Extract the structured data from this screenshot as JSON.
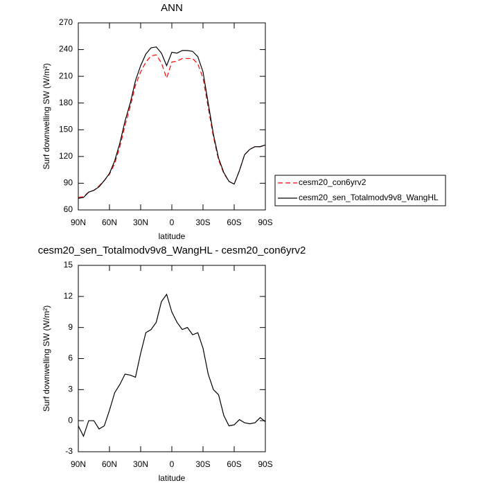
{
  "chart_data": [
    {
      "type": "line",
      "title": "ANN",
      "xlabel": "latitude",
      "ylabel": "Surf downwelling SW (W/m²)",
      "x": [
        90,
        85,
        80,
        75,
        70,
        65,
        60,
        55,
        50,
        45,
        40,
        35,
        30,
        25,
        20,
        15,
        10,
        5,
        0,
        -5,
        -10,
        -15,
        -20,
        -25,
        -30,
        -35,
        -40,
        -45,
        -50,
        -55,
        -60,
        -65,
        -70,
        -75,
        -80,
        -85,
        -90
      ],
      "xlim": [
        90,
        -90
      ],
      "xticks": [
        {
          "value": 90,
          "label": "90N"
        },
        {
          "value": 60,
          "label": "60N"
        },
        {
          "value": 30,
          "label": "30N"
        },
        0,
        {
          "value": -30,
          "label": "30S"
        },
        {
          "value": -60,
          "label": "60S"
        },
        {
          "value": -90,
          "label": "90S"
        }
      ],
      "ylim": [
        60,
        270
      ],
      "yticks": [
        60,
        90,
        120,
        150,
        180,
        210,
        240,
        270
      ],
      "legend": "right",
      "series": [
        {
          "name": "cesm20_con6yrv2",
          "color": "#ff0000",
          "line_style": "dashed",
          "values": [
            74,
            75,
            80,
            82,
            87,
            93,
            100,
            112,
            131,
            155,
            176,
            200,
            215,
            226,
            233,
            234,
            225,
            208,
            226,
            227,
            230,
            230,
            230,
            224,
            208,
            175,
            142,
            116,
            101,
            92,
            89,
            104,
            122,
            128,
            131,
            131,
            133
          ]
        },
        {
          "name": "cesm20_sen_Totalmodv9v8_WangHL",
          "color": "#000000",
          "line_style": "solid",
          "values": [
            73,
            74,
            80,
            82,
            86,
            93,
            101,
            115,
            135,
            160,
            180,
            205,
            222,
            235,
            242,
            243,
            236,
            222,
            237,
            236,
            239,
            239,
            238,
            232,
            215,
            180,
            145,
            118,
            102,
            92,
            89,
            104,
            122,
            128,
            131,
            131,
            133
          ]
        }
      ]
    },
    {
      "type": "line",
      "title": "cesm20_sen_Totalmodv9v8_WangHL - cesm20_con6yrv2",
      "xlabel": "latitude",
      "ylabel": "Surf downwelling SW (W/m²)",
      "x": [
        90,
        85,
        80,
        75,
        70,
        65,
        60,
        55,
        50,
        45,
        40,
        35,
        30,
        25,
        20,
        15,
        10,
        5,
        0,
        -5,
        -10,
        -15,
        -20,
        -25,
        -30,
        -35,
        -40,
        -45,
        -50,
        -55,
        -60,
        -65,
        -70,
        -75,
        -80,
        -85,
        -90
      ],
      "xlim": [
        90,
        -90
      ],
      "xticks": [
        {
          "value": 90,
          "label": "90N"
        },
        {
          "value": 60,
          "label": "60N"
        },
        {
          "value": 30,
          "label": "30N"
        },
        0,
        {
          "value": -30,
          "label": "30S"
        },
        {
          "value": -60,
          "label": "60S"
        },
        {
          "value": -90,
          "label": "90S"
        }
      ],
      "ylim": [
        -3,
        15
      ],
      "yticks": [
        -3,
        0,
        3,
        6,
        9,
        12,
        15
      ],
      "color": "#000000",
      "line_style": "solid",
      "values": [
        -0.5,
        -1.5,
        0,
        0,
        -0.8,
        -0.5,
        1,
        2.7,
        3.5,
        4.5,
        4.4,
        4.2,
        6.5,
        8.5,
        8.8,
        9.5,
        11.5,
        12.2,
        10.5,
        9.5,
        8.8,
        9,
        8.3,
        8.5,
        7,
        4.5,
        3,
        2.5,
        0.5,
        -0.5,
        -0.4,
        0.1,
        -0.2,
        -0.3,
        -0.2,
        0.3,
        -0.1
      ]
    }
  ]
}
